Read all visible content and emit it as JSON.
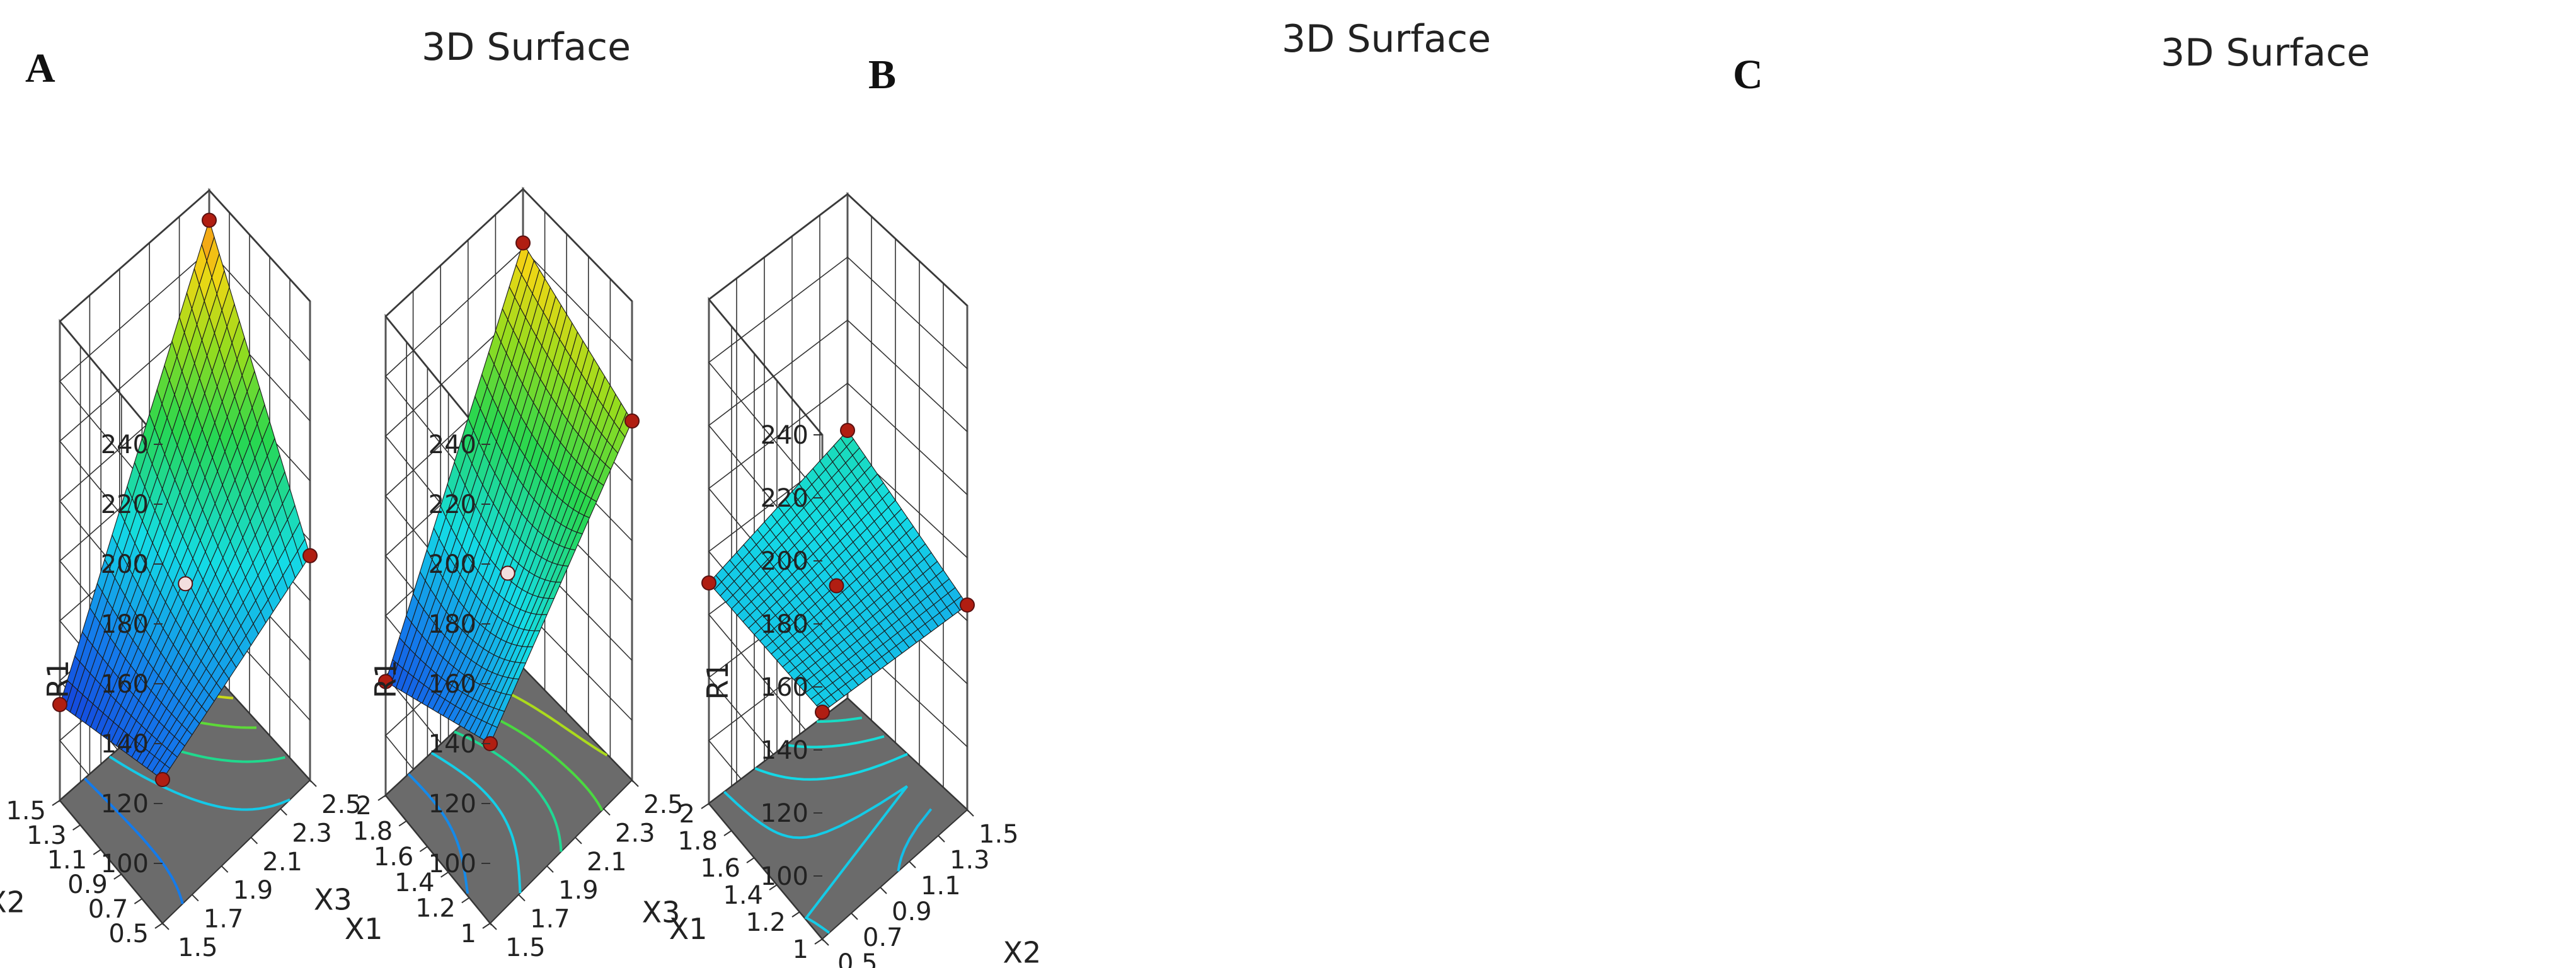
{
  "chart_data": [
    {
      "type": "surface",
      "panel_label": "A",
      "title": "3D Surface",
      "xlabel": "X1",
      "ylabel": "X2",
      "zlabel": "R1",
      "x_ticks": [
        "1.5",
        "1.7",
        "1.9",
        "2.1",
        "2.3",
        "2.5"
      ],
      "y_ticks": [
        "0.5",
        "0.7",
        "0.9",
        "1.1",
        "1.3",
        "1.5"
      ],
      "z_ticks": [
        "100",
        "120",
        "140",
        "160",
        "180",
        "200",
        "220",
        "240"
      ],
      "xlim": [
        1.5,
        2.5
      ],
      "ylim": [
        0.5,
        1.5
      ],
      "zlim": [
        100,
        240
      ],
      "corner_values": {
        "x_low_y_low": 128,
        "x_high_y_low": 155,
        "x_low_y_high": 112,
        "x_high_y_high": 230
      },
      "center_value": 150,
      "design_points": [
        {
          "x": 1.5,
          "y": 1.5,
          "r1": 112
        },
        {
          "x": 2.5,
          "y": 1.5,
          "r1": 230
        },
        {
          "x": 2.5,
          "y": 0.5,
          "r1": 155
        },
        {
          "x": 1.5,
          "y": 0.5,
          "r1": 128
        },
        {
          "x": 2.0,
          "y": 1.0,
          "r1": 150
        }
      ]
    },
    {
      "type": "surface",
      "panel_label": "B",
      "title": "3D Surface",
      "xlabel": "X1",
      "ylabel": "X3",
      "zlabel": "R1",
      "x_ticks": [
        "1.5",
        "1.7",
        "1.9",
        "2.1",
        "2.3",
        "2.5"
      ],
      "y_ticks": [
        "1",
        "1.2",
        "1.4",
        "1.6",
        "1.8",
        "2"
      ],
      "z_ticks": [
        "100",
        "120",
        "140",
        "160",
        "180",
        "200",
        "220",
        "240"
      ],
      "xlim": [
        1.5,
        2.5
      ],
      "ylim": [
        1,
        2
      ],
      "zlim": [
        100,
        240
      ],
      "corner_values": {
        "x_low_y_low": 140,
        "x_high_y_low": 200,
        "x_low_y_high": 118,
        "x_high_y_high": 222
      },
      "center_value": 153,
      "design_points": [
        {
          "x": 1.5,
          "y": 2,
          "r1": 118
        },
        {
          "x": 2.5,
          "y": 2,
          "r1": 222
        },
        {
          "x": 2.5,
          "y": 1,
          "r1": 200
        },
        {
          "x": 1.5,
          "y": 1,
          "r1": 140
        },
        {
          "x": 2.0,
          "y": 1.5,
          "r1": 153
        }
      ]
    },
    {
      "type": "surface",
      "panel_label": "C",
      "title": "3D Surface",
      "xlabel": "X2",
      "ylabel": "X3",
      "zlabel": "R1",
      "x_ticks": [
        "0.5",
        "0.7",
        "0.9",
        "1.1",
        "1.3",
        "1.5"
      ],
      "y_ticks": [
        "1",
        "1.2",
        "1.4",
        "1.6",
        "1.8",
        "2"
      ],
      "z_ticks": [
        "100",
        "120",
        "140",
        "160",
        "180",
        "200",
        "220",
        "240"
      ],
      "xlim": [
        0.5,
        1.5
      ],
      "ylim": [
        1,
        2
      ],
      "zlim": [
        100,
        240
      ],
      "corner_values": {
        "x_low_y_low": 152,
        "x_high_y_low": 145,
        "x_low_y_high": 150,
        "x_high_y_high": 165
      },
      "center_value": 152,
      "design_points": [
        {
          "x": 0.5,
          "y": 2,
          "r1": 150
        },
        {
          "x": 1.5,
          "y": 2,
          "r1": 165
        },
        {
          "x": 1.5,
          "y": 1,
          "r1": 145
        },
        {
          "x": 0.5,
          "y": 1,
          "r1": 152
        },
        {
          "x": 1.0,
          "y": 1.5,
          "r1": 152
        }
      ]
    }
  ],
  "colors": {
    "floor": "#6b6b6b",
    "point_dark": "#b01e12",
    "point_light": "#f3dede"
  }
}
